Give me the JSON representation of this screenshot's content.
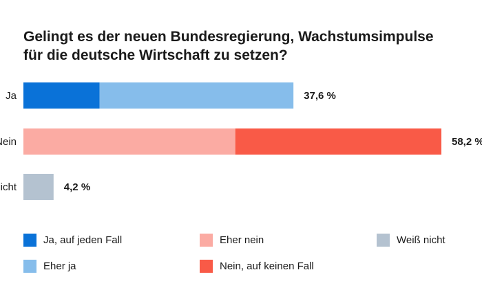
{
  "chart_data": {
    "type": "bar",
    "stacked": true,
    "orientation": "horizontal",
    "title": "Gelingt es der neuen Bundesregierung, Wachstumsimpulse für die deutsche Wirtschaft zu setzen?",
    "title_lines": [
      "Gelingt es der neuen Bundesregierung, Wachstumsimpulse",
      "für die deutsche Wirtschaft zu setzen?"
    ],
    "categories": [
      "Ja",
      "Nein",
      "Weiß nicht"
    ],
    "series": [
      {
        "name": "Ja, auf jeden Fall",
        "color": "#0a72d8",
        "values": [
          10.6,
          0,
          0
        ]
      },
      {
        "name": "Eher ja",
        "color": "#86bdeb",
        "values": [
          27.0,
          0,
          0
        ]
      },
      {
        "name": "Eher nein",
        "color": "#fbaba3",
        "values": [
          0,
          29.5,
          0
        ]
      },
      {
        "name": "Nein, auf keinen Fall",
        "color": "#f95a47",
        "values": [
          0,
          28.7,
          0
        ]
      },
      {
        "name": "Weiß nicht",
        "color": "#b4c2d0",
        "values": [
          0,
          0,
          4.2
        ]
      }
    ],
    "totals": [
      "37,6 %",
      "58,2 %",
      "4,2 %"
    ],
    "xlim": [
      0,
      58.2
    ],
    "grid": false,
    "legend_placement": "bottom"
  }
}
